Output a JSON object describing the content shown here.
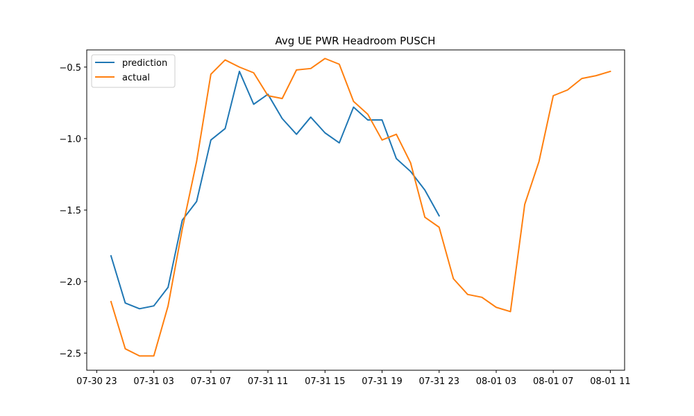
{
  "chart_data": {
    "type": "line",
    "title": "Avg UE PWR Headroom PUSCH",
    "xlabel": "",
    "ylabel": "",
    "grid": false,
    "legend_position": "top-left",
    "x_tick_labels": [
      "07-30 23",
      "07-31 03",
      "07-31 07",
      "07-31 11",
      "07-31 15",
      "07-31 19",
      "07-31 23",
      "08-01 03",
      "08-01 07",
      "08-01 11"
    ],
    "y_ticks": [
      -2.5,
      -2.0,
      -1.5,
      -1.0,
      -0.5
    ],
    "y_tick_labels": [
      "−2.5",
      "−2.0",
      "−1.5",
      "−1.0",
      "−0.5"
    ],
    "x_range": [
      "07-30 22:18",
      "08-01 12:00"
    ],
    "ylim": [
      -2.62,
      -0.38
    ],
    "series": [
      {
        "name": "prediction",
        "color": "#1f77b4",
        "points": [
          [
            "07-31 00:00",
            -1.82
          ],
          [
            "07-31 01:00",
            -2.15
          ],
          [
            "07-31 02:00",
            -2.19
          ],
          [
            "07-31 03:00",
            -2.17
          ],
          [
            "07-31 04:00",
            -2.04
          ],
          [
            "07-31 05:00",
            -1.57
          ],
          [
            "07-31 06:00",
            -1.44
          ],
          [
            "07-31 07:00",
            -1.01
          ],
          [
            "07-31 08:00",
            -0.93
          ],
          [
            "07-31 09:00",
            -0.53
          ],
          [
            "07-31 10:00",
            -0.76
          ],
          [
            "07-31 11:00",
            -0.69
          ],
          [
            "07-31 12:00",
            -0.86
          ],
          [
            "07-31 13:00",
            -0.97
          ],
          [
            "07-31 14:00",
            -0.85
          ],
          [
            "07-31 15:00",
            -0.96
          ],
          [
            "07-31 16:00",
            -1.03
          ],
          [
            "07-31 17:00",
            -0.78
          ],
          [
            "07-31 18:00",
            -0.87
          ],
          [
            "07-31 19:00",
            -0.87
          ],
          [
            "07-31 20:00",
            -1.14
          ],
          [
            "07-31 21:00",
            -1.23
          ],
          [
            "07-31 22:00",
            -1.36
          ],
          [
            "07-31 23:00",
            -1.54
          ]
        ]
      },
      {
        "name": "actual",
        "color": "#ff7f0e",
        "points": [
          [
            "07-31 00:00",
            -2.14
          ],
          [
            "07-31 01:00",
            -2.47
          ],
          [
            "07-31 02:00",
            -2.52
          ],
          [
            "07-31 03:00",
            -2.52
          ],
          [
            "07-31 04:00",
            -2.17
          ],
          [
            "07-31 05:00",
            -1.63
          ],
          [
            "07-31 06:00",
            -1.16
          ],
          [
            "07-31 07:00",
            -0.55
          ],
          [
            "07-31 08:00",
            -0.45
          ],
          [
            "07-31 09:00",
            -0.5
          ],
          [
            "07-31 10:00",
            -0.54
          ],
          [
            "07-31 11:00",
            -0.7
          ],
          [
            "07-31 12:00",
            -0.72
          ],
          [
            "07-31 13:00",
            -0.52
          ],
          [
            "07-31 14:00",
            -0.51
          ],
          [
            "07-31 15:00",
            -0.44
          ],
          [
            "07-31 16:00",
            -0.48
          ],
          [
            "07-31 17:00",
            -0.74
          ],
          [
            "07-31 18:00",
            -0.83
          ],
          [
            "07-31 19:00",
            -1.01
          ],
          [
            "07-31 20:00",
            -0.97
          ],
          [
            "07-31 21:00",
            -1.17
          ],
          [
            "07-31 22:00",
            -1.55
          ],
          [
            "07-31 23:00",
            -1.62
          ],
          [
            "08-01 00:00",
            -1.98
          ],
          [
            "08-01 01:00",
            -2.09
          ],
          [
            "08-01 02:00",
            -2.11
          ],
          [
            "08-01 03:00",
            -2.18
          ],
          [
            "08-01 04:00",
            -2.21
          ],
          [
            "08-01 05:00",
            -1.46
          ],
          [
            "08-01 06:00",
            -1.16
          ],
          [
            "08-01 07:00",
            -0.7
          ],
          [
            "08-01 08:00",
            -0.66
          ],
          [
            "08-01 09:00",
            -0.58
          ],
          [
            "08-01 10:00",
            -0.56
          ],
          [
            "08-01 11:00",
            -0.53
          ]
        ]
      }
    ]
  }
}
